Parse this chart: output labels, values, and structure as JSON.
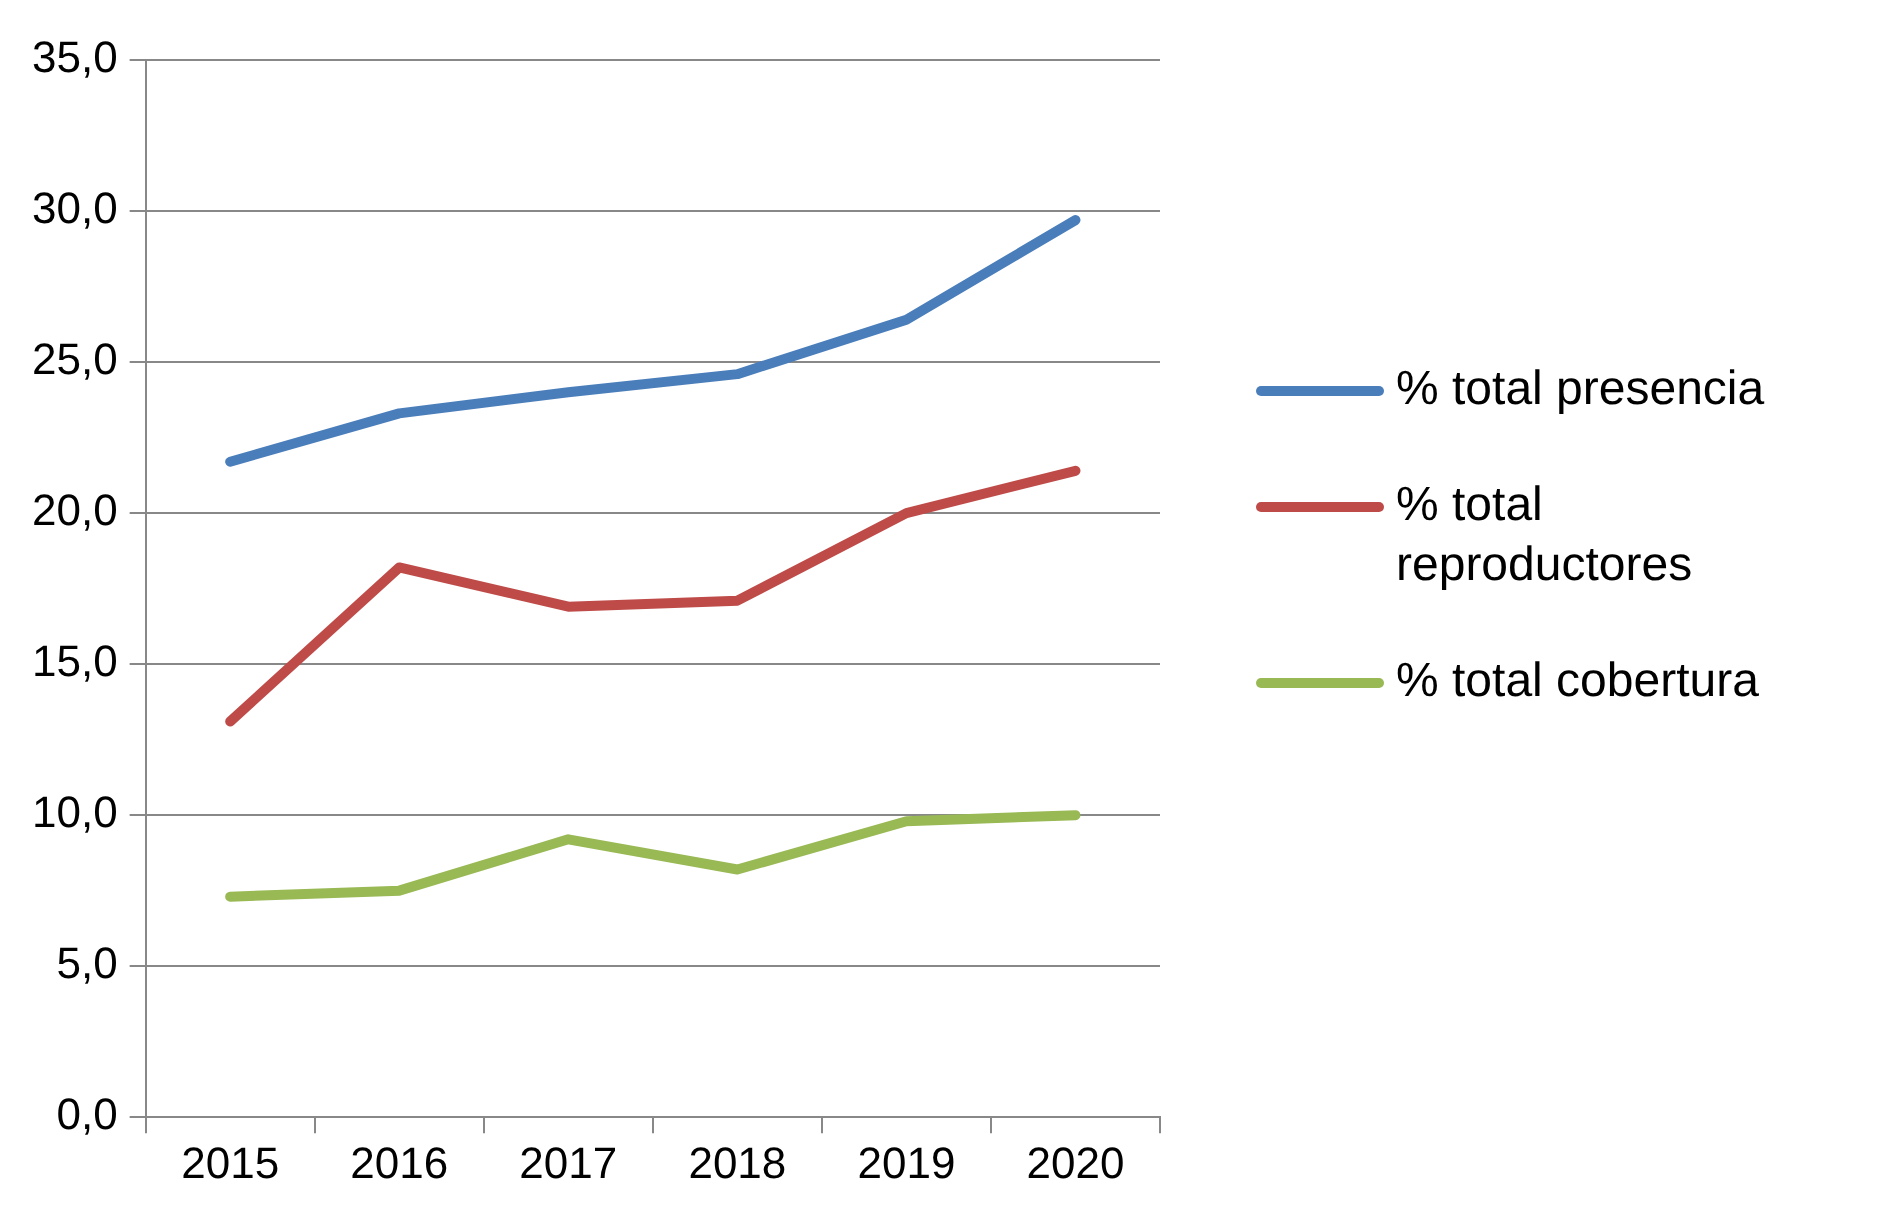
{
  "chart_data": {
    "type": "line",
    "categories": [
      "2015",
      "2016",
      "2017",
      "2018",
      "2019",
      "2020"
    ],
    "series": [
      {
        "name": "% total presencia",
        "color": "#4a7ebb",
        "values": [
          21.7,
          23.3,
          24.0,
          24.6,
          26.4,
          29.7
        ]
      },
      {
        "name": "% total reproductores",
        "color": "#be4b48",
        "values": [
          13.1,
          18.2,
          16.9,
          17.1,
          20.0,
          21.4
        ]
      },
      {
        "name": "% total cobertura",
        "color": "#98b954",
        "values": [
          7.3,
          7.5,
          9.2,
          8.2,
          9.8,
          10.0
        ]
      }
    ],
    "ylim": [
      0,
      35
    ],
    "yticks": [
      {
        "value": 0,
        "label": "0,0"
      },
      {
        "value": 5,
        "label": "5,0"
      },
      {
        "value": 10,
        "label": "10,0"
      },
      {
        "value": 15,
        "label": "15,0"
      },
      {
        "value": 20,
        "label": "20,0"
      },
      {
        "value": 25,
        "label": "25,0"
      },
      {
        "value": 30,
        "label": "30,0"
      },
      {
        "value": 35,
        "label": "35,0"
      }
    ],
    "grid": "y",
    "legend": "right",
    "marker": "none",
    "line_style": "solid"
  }
}
